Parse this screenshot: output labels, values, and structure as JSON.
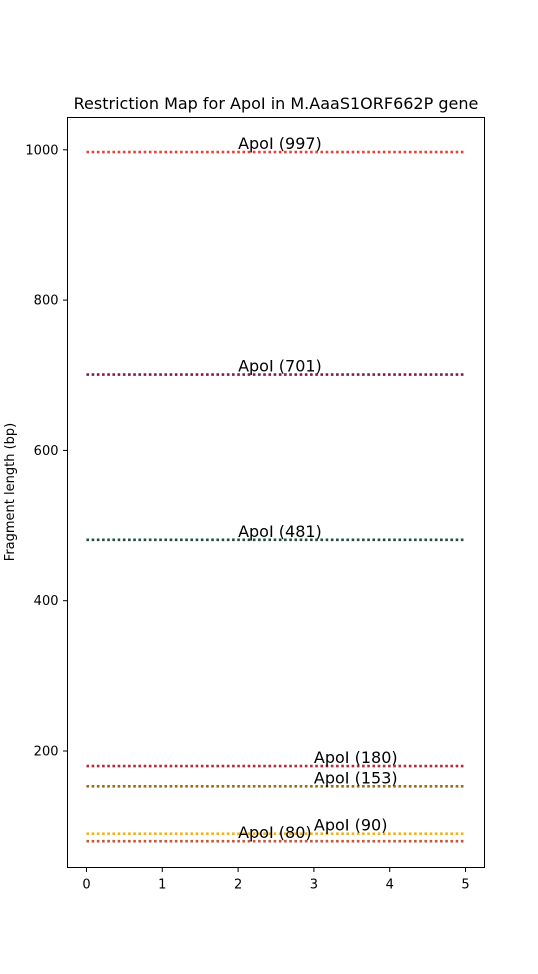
{
  "chart_data": {
    "type": "line",
    "title": "Restriction Map for ApoI in M.AaaS1ORF662P gene",
    "xlabel": "",
    "ylabel": "Fragment length (bp)",
    "xlim": [
      -0.25,
      5.25
    ],
    "ylim": [
      45,
      1043
    ],
    "xticks": [
      0,
      1,
      2,
      3,
      4,
      5
    ],
    "yticks": [
      200,
      400,
      600,
      800,
      1000
    ],
    "grid": false,
    "line_style": "dotted",
    "fragments": [
      {
        "label": "ApoI (997)",
        "value": 997,
        "x_start": 0,
        "x_end": 5,
        "label_x": 2,
        "color": "#e8413a"
      },
      {
        "label": "ApoI (701)",
        "value": 701,
        "x_start": 0,
        "x_end": 5,
        "label_x": 2,
        "color": "#7d1b50"
      },
      {
        "label": "ApoI (481)",
        "value": 481,
        "x_start": 0,
        "x_end": 5,
        "label_x": 2,
        "color": "#1f4d3c"
      },
      {
        "label": "ApoI (180)",
        "value": 180,
        "x_start": 0,
        "x_end": 5,
        "label_x": 3,
        "color": "#b02c3c"
      },
      {
        "label": "ApoI (153)",
        "value": 153,
        "x_start": 0,
        "x_end": 5,
        "label_x": 3,
        "color": "#9a6d14"
      },
      {
        "label": "ApoI (90)",
        "value": 90,
        "x_start": 0,
        "x_end": 5,
        "label_x": 3,
        "color": "#f2b21c"
      },
      {
        "label": "ApoI (80)",
        "value": 80,
        "x_start": 0,
        "x_end": 5,
        "label_x": 2,
        "color": "#c6553a"
      }
    ]
  }
}
